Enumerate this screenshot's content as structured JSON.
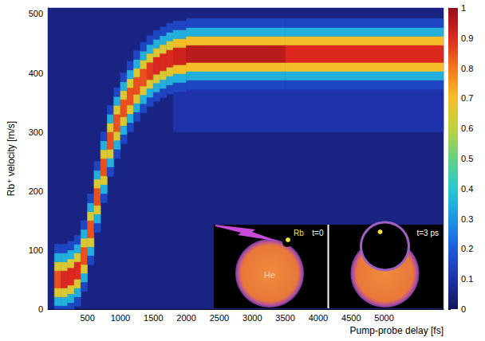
{
  "chart_data": {
    "type": "heatmap",
    "x_label": "Pump-probe delay [fs]",
    "y_label": "Rb⁺ velocity [m/s]",
    "xlim": [
      -100,
      5900
    ],
    "xticks": [
      500,
      1000,
      1500,
      2000,
      2500,
      3000,
      3500,
      4000,
      4500,
      5000
    ],
    "ylim": [
      0,
      510
    ],
    "yticks": [
      0,
      100,
      200,
      300,
      400,
      500
    ],
    "grid": false,
    "cells": [
      [
        -100,
        5900,
        0,
        510,
        0.05
      ],
      [
        1800,
        5900,
        300,
        372,
        0.1
      ],
      [
        0,
        100,
        35,
        65,
        0.85
      ],
      [
        0,
        100,
        20,
        35,
        0.65
      ],
      [
        0,
        100,
        65,
        80,
        0.65
      ],
      [
        0,
        100,
        5,
        20,
        0.35
      ],
      [
        0,
        100,
        80,
        95,
        0.35
      ],
      [
        0,
        100,
        0,
        5,
        0.15
      ],
      [
        0,
        100,
        95,
        110,
        0.15
      ],
      [
        100,
        200,
        35,
        65,
        0.9
      ],
      [
        100,
        200,
        20,
        35,
        0.65
      ],
      [
        100,
        200,
        65,
        80,
        0.65
      ],
      [
        100,
        200,
        5,
        20,
        0.35
      ],
      [
        100,
        200,
        80,
        95,
        0.35
      ],
      [
        100,
        200,
        0,
        5,
        0.15
      ],
      [
        100,
        200,
        95,
        110,
        0.15
      ],
      [
        200,
        300,
        40,
        70,
        0.9
      ],
      [
        200,
        300,
        25,
        40,
        0.65
      ],
      [
        200,
        300,
        70,
        85,
        0.65
      ],
      [
        200,
        300,
        10,
        25,
        0.35
      ],
      [
        200,
        300,
        85,
        100,
        0.35
      ],
      [
        200,
        300,
        0,
        10,
        0.15
      ],
      [
        200,
        300,
        100,
        115,
        0.15
      ],
      [
        300,
        400,
        50,
        80,
        0.9
      ],
      [
        300,
        400,
        35,
        50,
        0.65
      ],
      [
        300,
        400,
        80,
        95,
        0.65
      ],
      [
        300,
        400,
        20,
        35,
        0.35
      ],
      [
        300,
        400,
        95,
        110,
        0.35
      ],
      [
        300,
        400,
        5,
        20,
        0.15
      ],
      [
        300,
        400,
        110,
        125,
        0.15
      ],
      [
        400,
        500,
        75,
        105,
        0.85
      ],
      [
        400,
        500,
        60,
        75,
        0.65
      ],
      [
        400,
        500,
        105,
        120,
        0.65
      ],
      [
        400,
        500,
        45,
        60,
        0.35
      ],
      [
        400,
        500,
        120,
        135,
        0.35
      ],
      [
        400,
        500,
        30,
        45,
        0.15
      ],
      [
        400,
        500,
        135,
        150,
        0.15
      ],
      [
        500,
        600,
        120,
        150,
        0.85
      ],
      [
        500,
        600,
        105,
        120,
        0.65
      ],
      [
        500,
        600,
        150,
        165,
        0.65
      ],
      [
        500,
        600,
        90,
        105,
        0.35
      ],
      [
        500,
        600,
        165,
        180,
        0.35
      ],
      [
        500,
        600,
        75,
        90,
        0.15
      ],
      [
        500,
        600,
        180,
        195,
        0.15
      ],
      [
        600,
        700,
        175,
        205,
        0.85
      ],
      [
        600,
        700,
        160,
        175,
        0.65
      ],
      [
        600,
        700,
        205,
        220,
        0.65
      ],
      [
        600,
        700,
        145,
        160,
        0.35
      ],
      [
        600,
        700,
        220,
        235,
        0.35
      ],
      [
        600,
        700,
        130,
        145,
        0.15
      ],
      [
        600,
        700,
        235,
        250,
        0.15
      ],
      [
        700,
        800,
        225,
        255,
        0.85
      ],
      [
        700,
        800,
        210,
        225,
        0.65
      ],
      [
        700,
        800,
        255,
        270,
        0.65
      ],
      [
        700,
        800,
        195,
        210,
        0.35
      ],
      [
        700,
        800,
        270,
        285,
        0.35
      ],
      [
        700,
        800,
        180,
        195,
        0.15
      ],
      [
        700,
        800,
        285,
        300,
        0.15
      ],
      [
        800,
        900,
        270,
        300,
        0.85
      ],
      [
        800,
        900,
        255,
        270,
        0.65
      ],
      [
        800,
        900,
        300,
        315,
        0.65
      ],
      [
        800,
        900,
        240,
        255,
        0.35
      ],
      [
        800,
        900,
        315,
        330,
        0.35
      ],
      [
        800,
        900,
        225,
        240,
        0.15
      ],
      [
        800,
        900,
        330,
        345,
        0.15
      ],
      [
        900,
        1000,
        300,
        330,
        0.85
      ],
      [
        900,
        1000,
        285,
        300,
        0.65
      ],
      [
        900,
        1000,
        330,
        345,
        0.65
      ],
      [
        900,
        1000,
        270,
        285,
        0.35
      ],
      [
        900,
        1000,
        345,
        360,
        0.35
      ],
      [
        900,
        1000,
        255,
        270,
        0.15
      ],
      [
        900,
        1000,
        360,
        375,
        0.15
      ],
      [
        1000,
        1100,
        325,
        355,
        0.85
      ],
      [
        1000,
        1100,
        310,
        325,
        0.65
      ],
      [
        1000,
        1100,
        355,
        370,
        0.65
      ],
      [
        1000,
        1100,
        295,
        310,
        0.35
      ],
      [
        1000,
        1100,
        370,
        385,
        0.35
      ],
      [
        1000,
        1100,
        280,
        295,
        0.15
      ],
      [
        1000,
        1100,
        385,
        400,
        0.15
      ],
      [
        1100,
        1200,
        345,
        375,
        0.85
      ],
      [
        1100,
        1200,
        330,
        345,
        0.65
      ],
      [
        1100,
        1200,
        375,
        390,
        0.65
      ],
      [
        1100,
        1200,
        315,
        330,
        0.35
      ],
      [
        1100,
        1200,
        390,
        405,
        0.35
      ],
      [
        1100,
        1200,
        300,
        315,
        0.15
      ],
      [
        1100,
        1200,
        405,
        420,
        0.15
      ],
      [
        1200,
        1300,
        363,
        393,
        0.85
      ],
      [
        1200,
        1300,
        348,
        363,
        0.65
      ],
      [
        1200,
        1300,
        393,
        408,
        0.65
      ],
      [
        1200,
        1300,
        333,
        348,
        0.35
      ],
      [
        1200,
        1300,
        408,
        423,
        0.35
      ],
      [
        1200,
        1300,
        318,
        333,
        0.15
      ],
      [
        1200,
        1300,
        423,
        438,
        0.15
      ],
      [
        1300,
        1400,
        377,
        407,
        0.85
      ],
      [
        1300,
        1400,
        362,
        377,
        0.65
      ],
      [
        1300,
        1400,
        407,
        422,
        0.65
      ],
      [
        1300,
        1400,
        347,
        362,
        0.35
      ],
      [
        1300,
        1400,
        422,
        437,
        0.35
      ],
      [
        1300,
        1400,
        332,
        347,
        0.15
      ],
      [
        1300,
        1400,
        437,
        452,
        0.15
      ],
      [
        1400,
        1500,
        388,
        418,
        0.88
      ],
      [
        1400,
        1500,
        373,
        388,
        0.65
      ],
      [
        1400,
        1500,
        418,
        433,
        0.65
      ],
      [
        1400,
        1500,
        358,
        373,
        0.35
      ],
      [
        1400,
        1500,
        433,
        448,
        0.35
      ],
      [
        1400,
        1500,
        343,
        358,
        0.15
      ],
      [
        1400,
        1500,
        448,
        463,
        0.15
      ],
      [
        1500,
        1600,
        397,
        427,
        0.9
      ],
      [
        1500,
        1600,
        382,
        397,
        0.65
      ],
      [
        1500,
        1600,
        427,
        442,
        0.65
      ],
      [
        1500,
        1600,
        367,
        382,
        0.35
      ],
      [
        1500,
        1600,
        442,
        457,
        0.35
      ],
      [
        1500,
        1600,
        352,
        367,
        0.15
      ],
      [
        1500,
        1600,
        457,
        472,
        0.15
      ],
      [
        1600,
        1700,
        403,
        433,
        0.9
      ],
      [
        1600,
        1700,
        388,
        403,
        0.65
      ],
      [
        1600,
        1700,
        433,
        448,
        0.65
      ],
      [
        1600,
        1700,
        373,
        388,
        0.35
      ],
      [
        1600,
        1700,
        448,
        463,
        0.35
      ],
      [
        1600,
        1700,
        358,
        373,
        0.15
      ],
      [
        1600,
        1700,
        463,
        478,
        0.15
      ],
      [
        1700,
        1800,
        409,
        439,
        0.9
      ],
      [
        1700,
        1800,
        394,
        409,
        0.65
      ],
      [
        1700,
        1800,
        439,
        454,
        0.65
      ],
      [
        1700,
        1800,
        379,
        394,
        0.35
      ],
      [
        1700,
        1800,
        454,
        469,
        0.35
      ],
      [
        1700,
        1800,
        364,
        379,
        0.15
      ],
      [
        1700,
        1800,
        469,
        484,
        0.15
      ],
      [
        1800,
        2000,
        413,
        443,
        0.92
      ],
      [
        1800,
        2000,
        398,
        413,
        0.7
      ],
      [
        1800,
        2000,
        443,
        458,
        0.7
      ],
      [
        1800,
        2000,
        383,
        398,
        0.35
      ],
      [
        1800,
        2000,
        458,
        473,
        0.35
      ],
      [
        1800,
        2000,
        368,
        383,
        0.15
      ],
      [
        1800,
        2000,
        473,
        488,
        0.15
      ],
      [
        2000,
        3500,
        417,
        447,
        0.95
      ],
      [
        2000,
        3500,
        402,
        417,
        0.7
      ],
      [
        2000,
        3500,
        447,
        462,
        0.7
      ],
      [
        2000,
        3500,
        387,
        402,
        0.35
      ],
      [
        2000,
        3500,
        462,
        477,
        0.35
      ],
      [
        2000,
        3500,
        372,
        387,
        0.15
      ],
      [
        2000,
        3500,
        477,
        492,
        0.15
      ],
      [
        3500,
        5900,
        417,
        447,
        0.9
      ],
      [
        3500,
        5900,
        402,
        417,
        0.7
      ],
      [
        3500,
        5900,
        447,
        462,
        0.7
      ],
      [
        3500,
        5900,
        387,
        402,
        0.35
      ],
      [
        3500,
        5900,
        462,
        477,
        0.35
      ],
      [
        3500,
        5900,
        372,
        387,
        0.15
      ],
      [
        3500,
        5900,
        477,
        492,
        0.15
      ]
    ],
    "colorbar": {
      "lim": [
        0,
        1
      ],
      "ticks": [
        0,
        0.1,
        0.2,
        0.3,
        0.4,
        0.5,
        0.6,
        0.7,
        0.8,
        0.9,
        1
      ]
    },
    "inset": {
      "panels": [
        "t=0",
        "t=3 ps"
      ],
      "atom": "Rb",
      "droplet": "He"
    }
  }
}
